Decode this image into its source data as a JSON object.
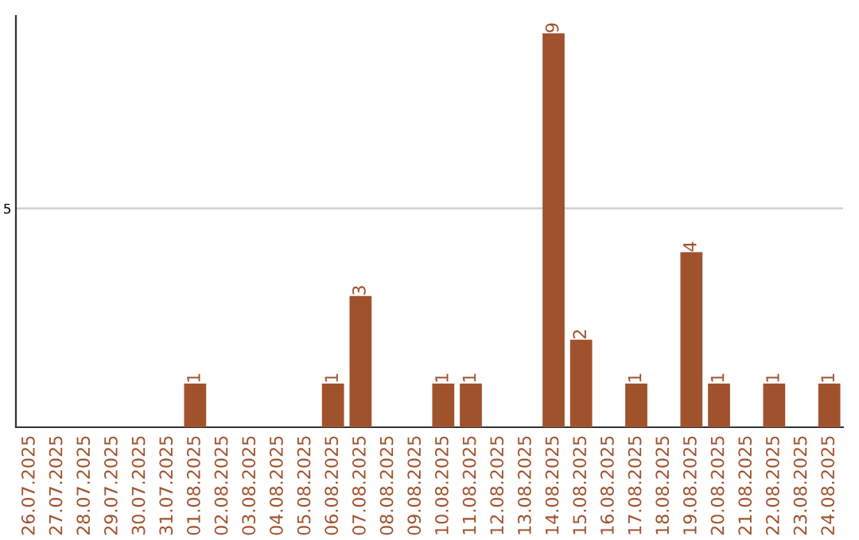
{
  "chart_data": {
    "type": "bar",
    "categories": [
      "26.07.2025",
      "27.07.2025",
      "28.07.2025",
      "29.07.2025",
      "30.07.2025",
      "31.07.2025",
      "01.08.2025",
      "02.08.2025",
      "03.08.2025",
      "04.08.2025",
      "05.08.2025",
      "06.08.2025",
      "07.08.2025",
      "08.08.2025",
      "09.08.2025",
      "10.08.2025",
      "11.08.2025",
      "12.08.2025",
      "13.08.2025",
      "14.08.2025",
      "15.08.2025",
      "16.08.2025",
      "17.08.2025",
      "18.08.2025",
      "19.08.2025",
      "20.08.2025",
      "21.08.2025",
      "22.08.2025",
      "23.08.2025",
      "24.08.2025"
    ],
    "values": [
      0,
      0,
      0,
      0,
      0,
      0,
      1,
      0,
      0,
      0,
      0,
      1,
      3,
      0,
      0,
      1,
      1,
      0,
      0,
      9,
      2,
      0,
      1,
      0,
      4,
      1,
      0,
      1,
      0,
      1
    ],
    "value_labels": [
      null,
      null,
      null,
      null,
      null,
      null,
      "1",
      null,
      null,
      null,
      null,
      "1",
      "3",
      null,
      null,
      "1",
      "1",
      null,
      null,
      "9",
      "2",
      null,
      "1",
      null,
      "4",
      "1",
      null,
      "1",
      null,
      "1"
    ],
    "color": "#a0522d",
    "ylim": [
      0,
      9.4
    ],
    "yticks": [
      5
    ],
    "grid": "y"
  }
}
